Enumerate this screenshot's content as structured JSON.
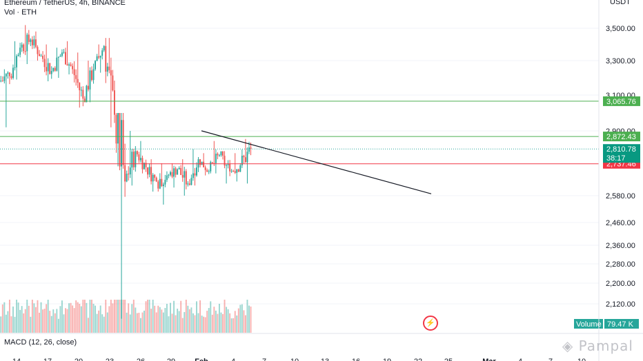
{
  "header": {
    "symbol_line": "Ethereum / TetherUS, 4h, BINANCE",
    "volume_label": "Vol · ETH",
    "quote_currency": "USDT"
  },
  "macd_label": "MACD (12, 26, close)",
  "volume_badge": {
    "label": "Volume",
    "value": "79.47 K"
  },
  "watermark": "Pampal",
  "colors": {
    "up": "#26a69a",
    "down": "#ef5350",
    "green_line": "#4caf50",
    "red_line": "#f23645",
    "trendline": "#131722"
  },
  "chart_data": {
    "type": "candlestick",
    "ylim": [
      2000,
      3600
    ],
    "y_ticks": [
      "3,500.00",
      "3,300.00",
      "3,100.00",
      "2,900.00",
      "2,580.00",
      "2,460.00",
      "2,360.00",
      "2,280.00",
      "2,200.00",
      "2,120.00"
    ],
    "y_tick_values": [
      3500,
      3300,
      3100,
      2900,
      2580,
      2460,
      2360,
      2280,
      2200,
      2120
    ],
    "x_tick_labels": [
      "14",
      "17",
      "20",
      "23",
      "26",
      "29",
      "Feb",
      "4",
      "7",
      "10",
      "13",
      "16",
      "19",
      "22",
      "25",
      "Mar",
      "4",
      "7",
      "10"
    ],
    "price_levels": [
      {
        "value": 3065.76,
        "label": "3,065.76",
        "color": "green"
      },
      {
        "value": 2872.43,
        "label": "2,872.43",
        "color": "green"
      },
      {
        "value": 2737.46,
        "label": "2,737.46",
        "color": "red"
      }
    ],
    "current_price": {
      "value": 2810.78,
      "label": "2,810.78",
      "countdown": "38:17"
    },
    "trendline": [
      [
        3.0,
        2880
      ],
      [
        21.7,
        2630
      ]
    ],
    "ohlc_daily": [
      [
        3180,
        3250,
        2920,
        3210
      ],
      [
        3210,
        3420,
        3190,
        3380
      ],
      [
        3380,
        3510,
        3280,
        3430
      ],
      [
        3430,
        3480,
        3300,
        3330
      ],
      [
        3330,
        3400,
        3180,
        3240
      ],
      [
        3240,
        3380,
        3200,
        3350
      ],
      [
        3350,
        3420,
        3220,
        3250
      ],
      [
        3250,
        3350,
        3030,
        3080
      ],
      [
        3080,
        3300,
        3060,
        3250
      ],
      [
        3250,
        3400,
        3230,
        3390
      ],
      [
        3390,
        3440,
        2920,
        2990
      ],
      [
        2990,
        3000,
        2050,
        2650
      ],
      [
        2650,
        2900,
        2630,
        2800
      ],
      [
        2800,
        2850,
        2690,
        2720
      ],
      [
        2720,
        2760,
        2600,
        2650
      ],
      [
        2650,
        2740,
        2540,
        2680
      ],
      [
        2680,
        2740,
        2620,
        2710
      ],
      [
        2710,
        2760,
        2580,
        2640
      ],
      [
        2640,
        2810,
        2630,
        2760
      ],
      [
        2760,
        2790,
        2680,
        2700
      ],
      [
        2700,
        2850,
        2690,
        2780
      ],
      [
        2780,
        2800,
        2640,
        2700
      ],
      [
        2700,
        2790,
        2650,
        2730
      ],
      [
        2730,
        2860,
        2640,
        2810
      ]
    ],
    "volume_max_k": 300
  }
}
